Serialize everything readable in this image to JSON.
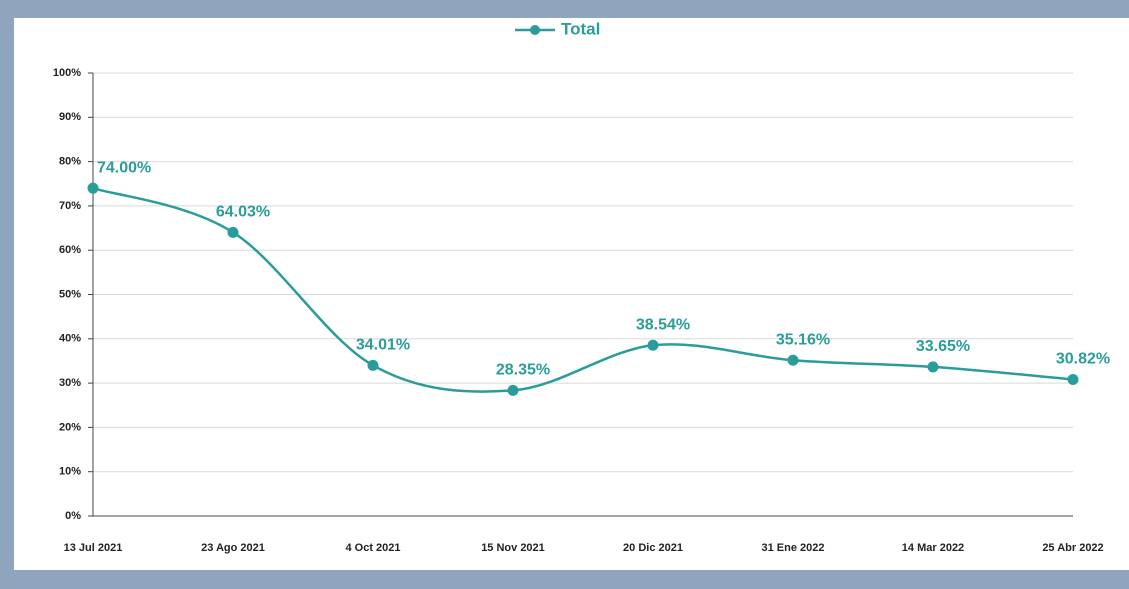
{
  "chart_data": {
    "type": "line",
    "categories": [
      "13 Jul 2021",
      "23 Ago 2021",
      "4 Oct 2021",
      "15 Nov 2021",
      "20 Dic 2021",
      "31 Ene 2022",
      "14 Mar 2022",
      "25 Abr 2022"
    ],
    "series": [
      {
        "name": "Total",
        "color": "#2a9d9a",
        "values": [
          74,
          64.03,
          34.01,
          28.35,
          38.54,
          35.16,
          33.65,
          30.82
        ],
        "value_labels": [
          "74.00%",
          "64.03%",
          "34.01%",
          "28.35%",
          "38.54%",
          "35.16%",
          "33.65%",
          "30.82%"
        ]
      }
    ],
    "ylim": [
      0,
      100
    ],
    "yticks": [
      {
        "value": 0,
        "label": "0%"
      },
      {
        "value": 10,
        "label": "10%"
      },
      {
        "value": 20,
        "label": "20%"
      },
      {
        "value": 30,
        "label": "30%"
      },
      {
        "value": 40,
        "label": "40%"
      },
      {
        "value": 50,
        "label": "50%"
      },
      {
        "value": 60,
        "label": "60%"
      },
      {
        "value": 70,
        "label": "70%"
      },
      {
        "value": 80,
        "label": "80%"
      },
      {
        "value": 90,
        "label": "90%"
      },
      {
        "value": 100,
        "label": "100%"
      }
    ],
    "grid": true,
    "legend": "top"
  }
}
